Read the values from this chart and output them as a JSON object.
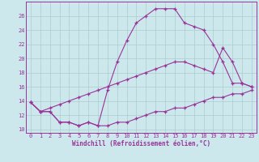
{
  "xlabel": "Windchill (Refroidissement éolien,°C)",
  "background_color": "#cce8ec",
  "grid_color": "#aacccc",
  "line_color": "#993399",
  "xlim": [
    -0.5,
    23.5
  ],
  "ylim": [
    9.5,
    28
  ],
  "yticks": [
    10,
    12,
    14,
    16,
    18,
    20,
    22,
    24,
    26
  ],
  "xticks": [
    0,
    1,
    2,
    3,
    4,
    5,
    6,
    7,
    8,
    9,
    10,
    11,
    12,
    13,
    14,
    15,
    16,
    17,
    18,
    19,
    20,
    21,
    22,
    23
  ],
  "line1_x": [
    0,
    1,
    2,
    3,
    4,
    5,
    6,
    7,
    8,
    9,
    10,
    11,
    12,
    13,
    14,
    15,
    16,
    17,
    18,
    19,
    20,
    21,
    22,
    23
  ],
  "line1_y": [
    13.8,
    12.5,
    12.5,
    11.0,
    11.0,
    10.5,
    11.0,
    10.5,
    10.5,
    11.0,
    11.0,
    11.5,
    12.0,
    12.5,
    12.5,
    13.0,
    13.0,
    13.5,
    14.0,
    14.5,
    14.5,
    15.0,
    15.0,
    15.5
  ],
  "line2_x": [
    0,
    1,
    2,
    3,
    4,
    5,
    6,
    7,
    8,
    9,
    10,
    11,
    12,
    13,
    14,
    15,
    16,
    17,
    18,
    19,
    20,
    21,
    22,
    23
  ],
  "line2_y": [
    13.8,
    12.5,
    12.5,
    11.0,
    11.0,
    10.5,
    11.0,
    10.5,
    15.5,
    19.5,
    22.5,
    25.0,
    26.0,
    27.0,
    27.0,
    27.0,
    25.0,
    24.5,
    24.0,
    22.0,
    19.5,
    16.5,
    16.5,
    16.0
  ],
  "line3_x": [
    0,
    1,
    2,
    3,
    4,
    5,
    6,
    7,
    8,
    9,
    10,
    11,
    12,
    13,
    14,
    15,
    16,
    17,
    18,
    19,
    20,
    21,
    22,
    23
  ],
  "line3_y": [
    13.8,
    12.5,
    13.0,
    13.5,
    14.0,
    14.5,
    15.0,
    15.5,
    16.0,
    16.5,
    17.0,
    17.5,
    18.0,
    18.5,
    19.0,
    19.5,
    19.5,
    19.0,
    18.5,
    18.0,
    21.5,
    19.5,
    16.5,
    16.0
  ]
}
